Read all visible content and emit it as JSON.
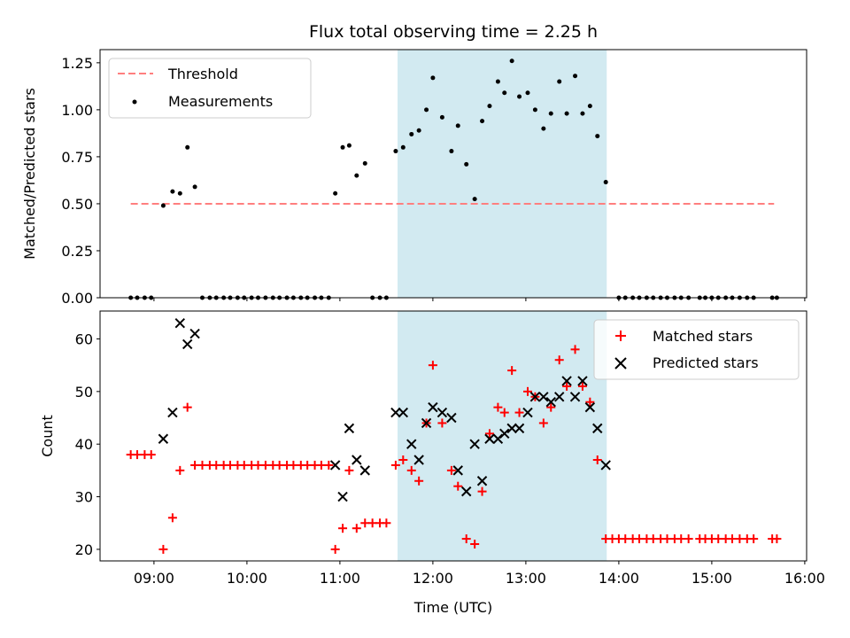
{
  "chart_data": {
    "title": "Flux total observing time = 2.25 h",
    "xlabel": "Time (UTC)",
    "xlim": [
      8.42,
      16.02
    ],
    "xticks": [
      9,
      10,
      11,
      12,
      13,
      14,
      15,
      16
    ],
    "xtick_labels": [
      "09:00",
      "10:00",
      "11:00",
      "12:00",
      "13:00",
      "14:00",
      "15:00",
      "16:00"
    ],
    "shaded_span": {
      "start": 11.62,
      "end": 13.87,
      "color": "#add8e6"
    },
    "panels": [
      {
        "type": "scatter",
        "ylabel": "Matched/Predicted stars",
        "ylim": [
          0,
          1.32
        ],
        "yticks": [
          0,
          0.25,
          0.5,
          0.75,
          1.0,
          1.25
        ],
        "ytick_labels": [
          "0.00",
          "0.25",
          "0.50",
          "0.75",
          "1.00",
          "1.25"
        ],
        "threshold": {
          "name": "Threshold",
          "value": 0.5,
          "x_start": 8.75,
          "x_end": 15.67,
          "color": "#ff7f7f"
        },
        "series": [
          {
            "name": "Measurements",
            "marker": "dot",
            "color": "#000000",
            "points": [
              [
                8.75,
                0
              ],
              [
                8.82,
                0
              ],
              [
                8.9,
                0
              ],
              [
                8.97,
                0
              ],
              [
                9.1,
                0.49
              ],
              [
                9.2,
                0.565
              ],
              [
                9.28,
                0.555
              ],
              [
                9.36,
                0.8
              ],
              [
                9.44,
                0.59
              ],
              [
                9.52,
                0
              ],
              [
                9.6,
                0
              ],
              [
                9.67,
                0
              ],
              [
                9.75,
                0
              ],
              [
                9.82,
                0
              ],
              [
                9.9,
                0
              ],
              [
                9.97,
                0
              ],
              [
                10.05,
                0
              ],
              [
                10.12,
                0
              ],
              [
                10.2,
                0
              ],
              [
                10.28,
                0
              ],
              [
                10.35,
                0
              ],
              [
                10.43,
                0
              ],
              [
                10.5,
                0
              ],
              [
                10.58,
                0
              ],
              [
                10.65,
                0
              ],
              [
                10.73,
                0
              ],
              [
                10.8,
                0
              ],
              [
                10.88,
                0
              ],
              [
                10.95,
                0.555
              ],
              [
                11.03,
                0.8
              ],
              [
                11.1,
                0.81
              ],
              [
                11.18,
                0.65
              ],
              [
                11.27,
                0.715
              ],
              [
                11.35,
                0
              ],
              [
                11.43,
                0
              ],
              [
                11.5,
                0
              ],
              [
                11.6,
                0.78
              ],
              [
                11.68,
                0.8
              ],
              [
                11.77,
                0.87
              ],
              [
                11.85,
                0.89
              ],
              [
                11.93,
                1.0
              ],
              [
                12.0,
                1.17
              ],
              [
                12.1,
                0.96
              ],
              [
                12.2,
                0.78
              ],
              [
                12.27,
                0.915
              ],
              [
                12.36,
                0.71
              ],
              [
                12.45,
                0.525
              ],
              [
                12.53,
                0.94
              ],
              [
                12.61,
                1.02
              ],
              [
                12.7,
                1.15
              ],
              [
                12.77,
                1.09
              ],
              [
                12.85,
                1.26
              ],
              [
                12.93,
                1.07
              ],
              [
                13.02,
                1.09
              ],
              [
                13.1,
                1.0
              ],
              [
                13.19,
                0.9
              ],
              [
                13.27,
                0.98
              ],
              [
                13.36,
                1.15
              ],
              [
                13.44,
                0.98
              ],
              [
                13.53,
                1.18
              ],
              [
                13.61,
                0.98
              ],
              [
                13.69,
                1.02
              ],
              [
                13.77,
                0.86
              ],
              [
                13.86,
                0.615
              ],
              [
                14.0,
                0
              ],
              [
                14.07,
                0
              ],
              [
                14.15,
                0
              ],
              [
                14.22,
                0
              ],
              [
                14.3,
                0
              ],
              [
                14.37,
                0
              ],
              [
                14.45,
                0
              ],
              [
                14.52,
                0
              ],
              [
                14.6,
                0
              ],
              [
                14.67,
                0
              ],
              [
                14.75,
                0
              ],
              [
                14.87,
                0
              ],
              [
                14.93,
                0
              ],
              [
                15.0,
                0
              ],
              [
                15.07,
                0
              ],
              [
                15.15,
                0
              ],
              [
                15.22,
                0
              ],
              [
                15.3,
                0
              ],
              [
                15.38,
                0
              ],
              [
                15.45,
                0
              ],
              [
                15.65,
                0
              ],
              [
                15.7,
                0
              ]
            ]
          }
        ],
        "legend": {
          "position": "top-left",
          "entries": [
            "Threshold",
            "Measurements"
          ]
        }
      },
      {
        "type": "scatter",
        "ylabel": "Count",
        "ylim": [
          17.8,
          65.3
        ],
        "yticks": [
          20,
          30,
          40,
          50,
          60
        ],
        "ytick_labels": [
          "20",
          "30",
          "40",
          "50",
          "60"
        ],
        "series": [
          {
            "name": "Matched stars",
            "marker": "plus",
            "color": "#ff0000",
            "points": [
              [
                8.75,
                38
              ],
              [
                8.82,
                38
              ],
              [
                8.9,
                38
              ],
              [
                8.97,
                38
              ],
              [
                9.1,
                20
              ],
              [
                9.2,
                26
              ],
              [
                9.28,
                35
              ],
              [
                9.36,
                47
              ],
              [
                9.44,
                36
              ],
              [
                9.52,
                36
              ],
              [
                9.6,
                36
              ],
              [
                9.67,
                36
              ],
              [
                9.75,
                36
              ],
              [
                9.82,
                36
              ],
              [
                9.9,
                36
              ],
              [
                9.97,
                36
              ],
              [
                10.05,
                36
              ],
              [
                10.12,
                36
              ],
              [
                10.2,
                36
              ],
              [
                10.28,
                36
              ],
              [
                10.35,
                36
              ],
              [
                10.43,
                36
              ],
              [
                10.5,
                36
              ],
              [
                10.58,
                36
              ],
              [
                10.65,
                36
              ],
              [
                10.73,
                36
              ],
              [
                10.8,
                36
              ],
              [
                10.88,
                36
              ],
              [
                10.95,
                20
              ],
              [
                11.03,
                24
              ],
              [
                11.1,
                35
              ],
              [
                11.18,
                24
              ],
              [
                11.27,
                25
              ],
              [
                11.35,
                25
              ],
              [
                11.43,
                25
              ],
              [
                11.5,
                25
              ],
              [
                11.6,
                36
              ],
              [
                11.68,
                37
              ],
              [
                11.77,
                35
              ],
              [
                11.85,
                33
              ],
              [
                11.93,
                44
              ],
              [
                12.0,
                55
              ],
              [
                12.1,
                44
              ],
              [
                12.2,
                35
              ],
              [
                12.27,
                32
              ],
              [
                12.36,
                22
              ],
              [
                12.45,
                21
              ],
              [
                12.53,
                31
              ],
              [
                12.61,
                42
              ],
              [
                12.7,
                47
              ],
              [
                12.77,
                46
              ],
              [
                12.85,
                54
              ],
              [
                12.93,
                46
              ],
              [
                13.02,
                50
              ],
              [
                13.1,
                49
              ],
              [
                13.19,
                44
              ],
              [
                13.27,
                47
              ],
              [
                13.36,
                56
              ],
              [
                13.44,
                51
              ],
              [
                13.53,
                58
              ],
              [
                13.61,
                51
              ],
              [
                13.69,
                48
              ],
              [
                13.77,
                37
              ],
              [
                13.86,
                22
              ],
              [
                13.93,
                22
              ],
              [
                14.0,
                22
              ],
              [
                14.07,
                22
              ],
              [
                14.15,
                22
              ],
              [
                14.22,
                22
              ],
              [
                14.3,
                22
              ],
              [
                14.37,
                22
              ],
              [
                14.45,
                22
              ],
              [
                14.52,
                22
              ],
              [
                14.6,
                22
              ],
              [
                14.67,
                22
              ],
              [
                14.75,
                22
              ],
              [
                14.87,
                22
              ],
              [
                14.93,
                22
              ],
              [
                15.0,
                22
              ],
              [
                15.07,
                22
              ],
              [
                15.15,
                22
              ],
              [
                15.22,
                22
              ],
              [
                15.3,
                22
              ],
              [
                15.38,
                22
              ],
              [
                15.45,
                22
              ],
              [
                15.65,
                22
              ],
              [
                15.7,
                22
              ]
            ]
          },
          {
            "name": "Predicted stars",
            "marker": "x",
            "color": "#000000",
            "points": [
              [
                9.1,
                41
              ],
              [
                9.2,
                46
              ],
              [
                9.28,
                63
              ],
              [
                9.36,
                59
              ],
              [
                9.44,
                61
              ],
              [
                10.95,
                36
              ],
              [
                11.03,
                30
              ],
              [
                11.1,
                43
              ],
              [
                11.18,
                37
              ],
              [
                11.27,
                35
              ],
              [
                11.6,
                46
              ],
              [
                11.68,
                46
              ],
              [
                11.77,
                40
              ],
              [
                11.85,
                37
              ],
              [
                11.93,
                44
              ],
              [
                12.0,
                47
              ],
              [
                12.1,
                46
              ],
              [
                12.2,
                45
              ],
              [
                12.27,
                35
              ],
              [
                12.36,
                31
              ],
              [
                12.45,
                40
              ],
              [
                12.53,
                33
              ],
              [
                12.61,
                41
              ],
              [
                12.7,
                41
              ],
              [
                12.77,
                42
              ],
              [
                12.85,
                43
              ],
              [
                12.93,
                43
              ],
              [
                13.02,
                46
              ],
              [
                13.1,
                49
              ],
              [
                13.19,
                49
              ],
              [
                13.27,
                48
              ],
              [
                13.36,
                49
              ],
              [
                13.44,
                52
              ],
              [
                13.53,
                49
              ],
              [
                13.61,
                52
              ],
              [
                13.69,
                47
              ],
              [
                13.77,
                43
              ],
              [
                13.86,
                36
              ]
            ]
          }
        ],
        "legend": {
          "position": "top-right",
          "entries": [
            "Matched stars",
            "Predicted stars"
          ]
        }
      }
    ]
  }
}
